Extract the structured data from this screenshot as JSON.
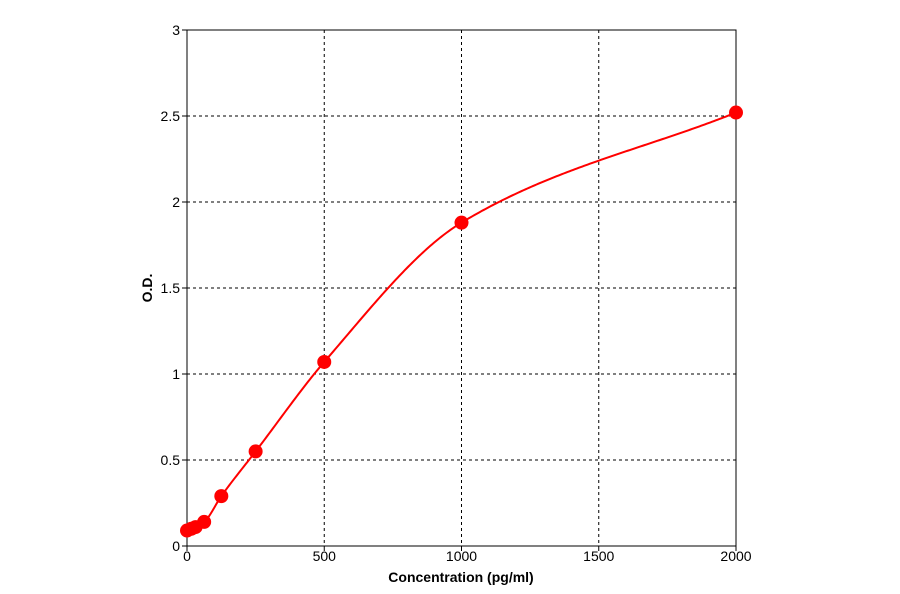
{
  "chart_data": {
    "type": "scatter",
    "title": "",
    "xlabel": "Concentration (pg/ml)",
    "ylabel": "O.D.",
    "xlim": [
      0,
      2000
    ],
    "ylim": [
      0,
      3
    ],
    "xticks": [
      0,
      500,
      1000,
      1500,
      2000
    ],
    "yticks": [
      0,
      0.5,
      1,
      1.5,
      2,
      2.5,
      3
    ],
    "xtick_labels": [
      "0",
      "500",
      "1000",
      "1500",
      "2000"
    ],
    "ytick_labels": [
      "0",
      "0.5",
      "1",
      "1.5",
      "2",
      "2.5",
      "3"
    ],
    "grid": true,
    "grid_style": "dashed",
    "series": [
      {
        "color": "#ff0000",
        "points": [
          {
            "x": 0,
            "y": 0.09
          },
          {
            "x": 15.6,
            "y": 0.1
          },
          {
            "x": 31.2,
            "y": 0.11
          },
          {
            "x": 62.5,
            "y": 0.14
          },
          {
            "x": 125,
            "y": 0.29
          },
          {
            "x": 250,
            "y": 0.55
          },
          {
            "x": 500,
            "y": 1.07
          },
          {
            "x": 1000,
            "y": 1.88
          },
          {
            "x": 2000,
            "y": 2.52
          }
        ],
        "fit_curve": true
      }
    ]
  }
}
